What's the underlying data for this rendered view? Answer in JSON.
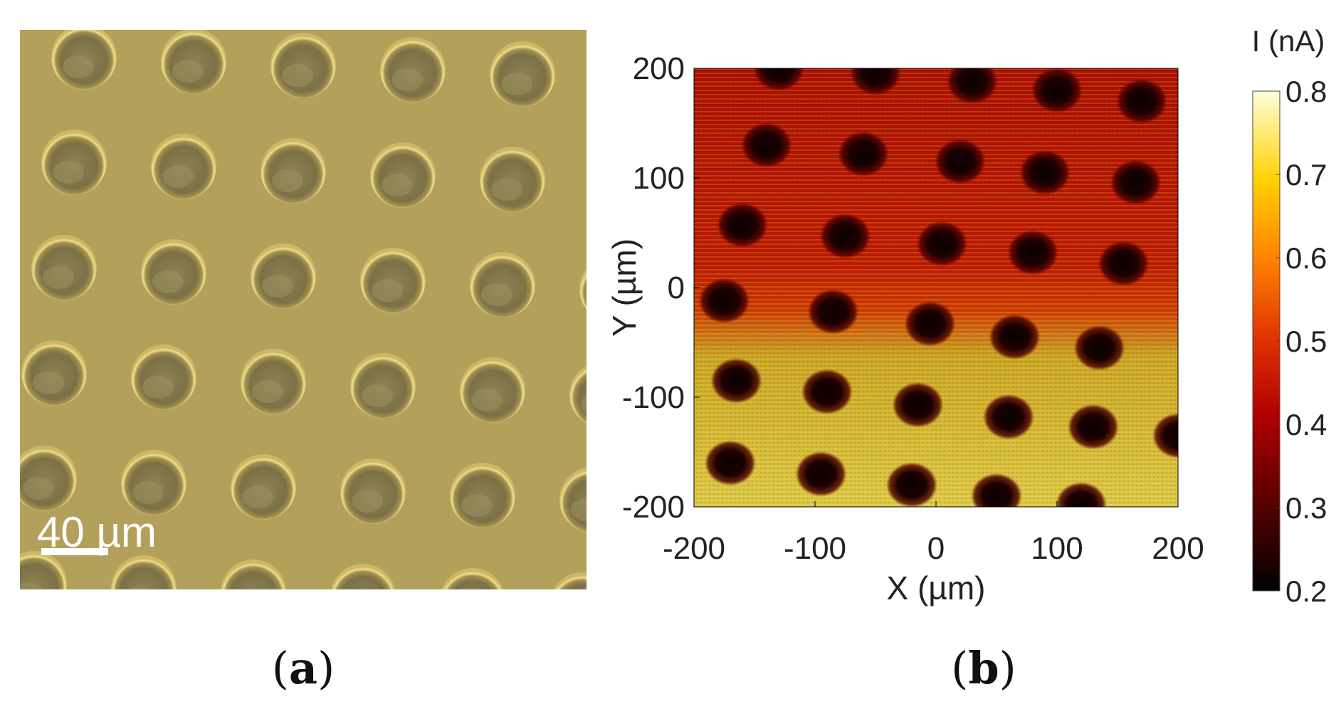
{
  "figure": {
    "panel_a": {
      "label_open": "(",
      "label_letter": "a",
      "label_close": ")",
      "scale_bar_text": "40 µm",
      "image_description_colors": {
        "background": "#b5a15a",
        "rim": "#f2dd8a",
        "well": "#857a4c"
      }
    },
    "panel_b": {
      "label_open": "(",
      "label_letter": "b",
      "label_close": ")"
    }
  },
  "chart_data": {
    "type": "heatmap",
    "title": "",
    "xlabel": "X (µm)",
    "ylabel": "Y (µm)",
    "xlim": [
      -200,
      200
    ],
    "ylim": [
      -200,
      200
    ],
    "x_ticks": [
      -200,
      -100,
      0,
      100,
      200
    ],
    "y_ticks": [
      -200,
      -100,
      0,
      100,
      200
    ],
    "colorbar": {
      "label": "I (nA)",
      "range": [
        0.2,
        0.8
      ],
      "ticks": [
        0.2,
        0.3,
        0.4,
        0.5,
        0.6,
        0.7,
        0.8
      ],
      "colormap": "hot",
      "colors": [
        "#000000",
        "#5a0000",
        "#b00000",
        "#e03000",
        "#ff8000",
        "#ffd000",
        "#ffffd8"
      ]
    },
    "background_current": {
      "upper_region_nA": 0.45,
      "lower_region_nA": 0.62
    },
    "spots": [
      {
        "x": -130,
        "y": 200,
        "I": 0.25
      },
      {
        "x": -50,
        "y": 196,
        "I": 0.25
      },
      {
        "x": 30,
        "y": 188,
        "I": 0.25
      },
      {
        "x": 100,
        "y": 180,
        "I": 0.25
      },
      {
        "x": 170,
        "y": 170,
        "I": 0.25
      },
      {
        "x": -140,
        "y": 130,
        "I": 0.22
      },
      {
        "x": -60,
        "y": 122,
        "I": 0.22
      },
      {
        "x": 20,
        "y": 115,
        "I": 0.25
      },
      {
        "x": 90,
        "y": 105,
        "I": 0.25
      },
      {
        "x": 165,
        "y": 96,
        "I": 0.25
      },
      {
        "x": -160,
        "y": 57,
        "I": 0.25
      },
      {
        "x": -75,
        "y": 47,
        "I": 0.25
      },
      {
        "x": 5,
        "y": 40,
        "I": 0.25
      },
      {
        "x": 80,
        "y": 32,
        "I": 0.25
      },
      {
        "x": 155,
        "y": 22,
        "I": 0.25
      },
      {
        "x": -175,
        "y": -12,
        "I": 0.25
      },
      {
        "x": -85,
        "y": -22,
        "I": 0.22
      },
      {
        "x": -5,
        "y": -33,
        "I": 0.25
      },
      {
        "x": 65,
        "y": -45,
        "I": 0.25
      },
      {
        "x": 135,
        "y": -55,
        "I": 0.25
      },
      {
        "x": -165,
        "y": -85,
        "I": 0.22
      },
      {
        "x": -90,
        "y": -95,
        "I": 0.25
      },
      {
        "x": -15,
        "y": -107,
        "I": 0.22
      },
      {
        "x": 60,
        "y": -118,
        "I": 0.25
      },
      {
        "x": 130,
        "y": -127,
        "I": 0.25
      },
      {
        "x": 200,
        "y": -135,
        "I": 0.25
      },
      {
        "x": -170,
        "y": -160,
        "I": 0.22
      },
      {
        "x": -95,
        "y": -170,
        "I": 0.22
      },
      {
        "x": -20,
        "y": -180,
        "I": 0.22
      },
      {
        "x": 50,
        "y": -190,
        "I": 0.22
      },
      {
        "x": 120,
        "y": -198,
        "I": 0.22
      }
    ]
  }
}
